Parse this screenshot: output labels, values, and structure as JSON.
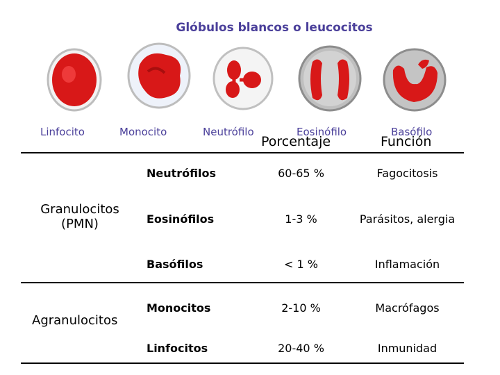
{
  "image": {
    "title": "Glóbulos blancos o leucocitos",
    "cells": [
      {
        "label": "Linfocito",
        "icon": "lymphocyte-cell-icon"
      },
      {
        "label": "Monocito",
        "icon": "monocyte-cell-icon"
      },
      {
        "label": "Neutrófilo",
        "icon": "neutrophil-cell-icon"
      },
      {
        "label": "Eosinófilo",
        "icon": "eosinophil-cell-icon"
      },
      {
        "label": "Basófilo",
        "icon": "basophil-cell-icon"
      }
    ],
    "colors": {
      "nucleus": "#d81818",
      "membrane": "#c9c9c9",
      "label": "#4a3f9a"
    }
  },
  "table": {
    "headers": {
      "percentage": "Porcentaje",
      "function": "Función"
    },
    "groups": [
      {
        "name_line1": "Granulocitos",
        "name_line2": "(PMN)"
      },
      {
        "name_line1": "Agranulocitos"
      }
    ],
    "rows": [
      {
        "name": "Neutrófilos",
        "percentage": "60-65 %",
        "function": "Fagocitosis"
      },
      {
        "name": "Eosinófilos",
        "percentage": "1-3 %",
        "function": "Parásitos, alergia"
      },
      {
        "name": "Basófilos",
        "percentage": "< 1 %",
        "function": "Inflamación"
      },
      {
        "name": "Monocitos",
        "percentage": "2-10 %",
        "function": "Macrófagos"
      },
      {
        "name": "Linfocitos",
        "percentage": "20-40 %",
        "function": "Inmunidad"
      }
    ]
  }
}
